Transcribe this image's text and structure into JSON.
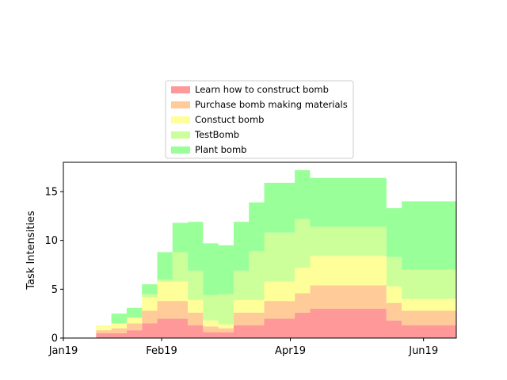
{
  "chart_data": {
    "type": "area",
    "step": true,
    "title": "",
    "xlabel": "",
    "ylabel": "Task Intensities",
    "x_unit": "date",
    "xlim": [
      "2019-01-01",
      "2019-06-30"
    ],
    "ylim": [
      0,
      18
    ],
    "x_tick_labels": [
      "Jan19",
      "Feb19",
      "Apr19",
      "Jun19"
    ],
    "x_tick_dates": [
      "2019-01-01",
      "2019-02-15",
      "2019-04-15",
      "2019-06-15"
    ],
    "y_ticks": [
      0,
      5,
      10,
      15
    ],
    "grid": false,
    "legend_position": "above plot, centered",
    "x_edges": [
      "2019-01-16",
      "2019-01-23",
      "2019-01-30",
      "2019-02-06",
      "2019-02-13",
      "2019-02-20",
      "2019-02-27",
      "2019-03-06",
      "2019-03-13",
      "2019-03-20",
      "2019-03-27",
      "2019-04-03",
      "2019-04-10",
      "2019-04-17",
      "2019-04-24",
      "2019-05-01",
      "2019-05-08",
      "2019-05-15",
      "2019-05-22",
      "2019-05-29",
      "2019-06-05",
      "2019-06-12",
      "2019-06-19",
      "2019-06-26",
      "2019-06-30"
    ],
    "series": [
      {
        "name": "Learn how to construct bomb",
        "color": "#ff9999",
        "values": [
          0.5,
          0.5,
          0.8,
          1.5,
          2.0,
          2.0,
          1.3,
          0.6,
          0.6,
          1.3,
          1.3,
          2.0,
          2.0,
          2.6,
          3.0,
          3.0,
          3.0,
          3.0,
          3.0,
          1.8,
          1.3,
          1.3,
          1.3,
          1.3
        ]
      },
      {
        "name": "Purchase bomb making materials",
        "color": "#ffcc99",
        "values": [
          0.3,
          0.5,
          0.7,
          1.3,
          1.8,
          1.8,
          1.3,
          0.6,
          0.4,
          1.3,
          1.3,
          1.8,
          1.8,
          2.0,
          2.4,
          2.4,
          2.4,
          2.4,
          2.4,
          1.8,
          1.5,
          1.5,
          1.5,
          1.5
        ]
      },
      {
        "name": "Constuct bomb",
        "color": "#ffff99",
        "values": [
          0.5,
          0.5,
          0.6,
          1.4,
          2.0,
          2.0,
          1.3,
          0.6,
          0.4,
          1.3,
          1.3,
          2.0,
          2.0,
          2.6,
          3.0,
          3.0,
          3.0,
          3.0,
          3.0,
          1.7,
          1.2,
          1.2,
          1.2,
          1.2
        ]
      },
      {
        "name": "TestBomb",
        "color": "#ccff99",
        "values": [
          0.0,
          0.0,
          0.0,
          0.3,
          0.2,
          3.0,
          3.0,
          2.6,
          3.1,
          3.0,
          5.0,
          5.0,
          5.0,
          5.0,
          3.0,
          3.0,
          3.0,
          3.0,
          3.0,
          3.0,
          3.0,
          3.0,
          3.0,
          3.0
        ]
      },
      {
        "name": "Plant bomb",
        "color": "#99ff99",
        "values": [
          0.0,
          1.0,
          1.0,
          1.0,
          2.8,
          3.0,
          5.0,
          5.3,
          5.0,
          5.0,
          5.0,
          5.1,
          5.1,
          5.0,
          5.0,
          5.0,
          5.0,
          5.0,
          5.0,
          5.0,
          7.0,
          7.0,
          7.0,
          7.0
        ]
      }
    ]
  }
}
